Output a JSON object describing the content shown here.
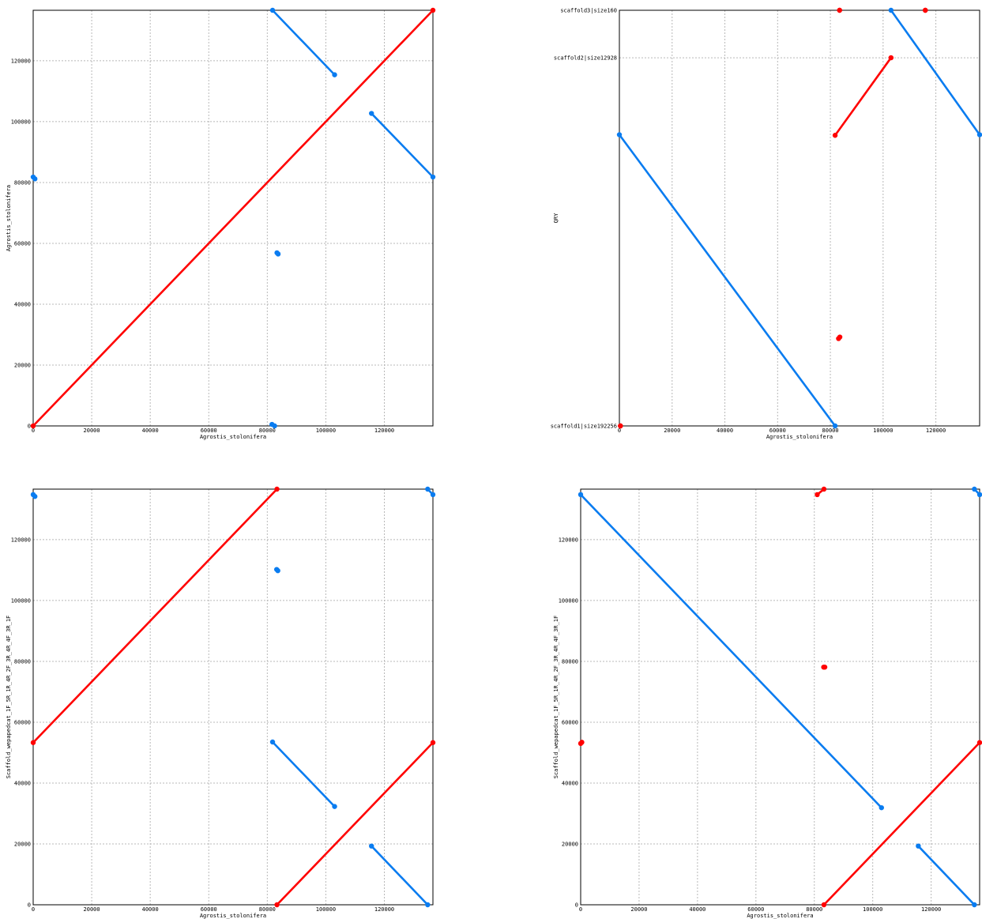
{
  "colors": {
    "forward": "#ff0000",
    "reverse": "#0a7cf0",
    "grid": "#b8b8b8",
    "axis": "#000000"
  },
  "chart_data": [
    {
      "type": "scatter",
      "title": "",
      "xlabel": "Agrostis_stolonifera",
      "ylabel": "Agrostis_stolonifera",
      "xlim": [
        0,
        136600
      ],
      "ylim": [
        0,
        136600
      ],
      "xticks": [
        0,
        20000,
        40000,
        60000,
        80000,
        100000,
        120000
      ],
      "yticks": [
        0,
        20000,
        40000,
        60000,
        80000,
        100000,
        120000
      ],
      "grid": true,
      "segments": [
        {
          "strand": "+",
          "x": [
            0,
            136600
          ],
          "y": [
            0,
            136600
          ]
        },
        {
          "strand": "-",
          "x": [
            81800,
            103000
          ],
          "y": [
            136600,
            115400
          ]
        },
        {
          "strand": "-",
          "x": [
            115600,
            136600
          ],
          "y": [
            102700,
            81800
          ]
        },
        {
          "strand": "-",
          "x": [
            0,
            600
          ],
          "y": [
            81800,
            81200
          ]
        },
        {
          "strand": "-",
          "x": [
            83300,
            83700
          ],
          "y": [
            56900,
            56500
          ]
        },
        {
          "strand": "-",
          "x": [
            81600,
            82500
          ],
          "y": [
            500,
            0
          ]
        }
      ]
    },
    {
      "type": "scatter",
      "title": "",
      "xlabel": "Agrostis_stolonifera",
      "ylabel": "QRY",
      "xlim": [
        0,
        136600
      ],
      "ylim": [
        0,
        136600
      ],
      "xticks": [
        0,
        20000,
        40000,
        60000,
        80000,
        100000,
        120000
      ],
      "yticks": [],
      "ytick_labels": [
        {
          "value": 0,
          "label": "scaffold1|size192256"
        },
        {
          "value": 121000,
          "label": "scaffold2|size12928"
        },
        {
          "value": 136600,
          "label": "scaffold3|size160"
        }
      ],
      "grid": true,
      "segments": [
        {
          "strand": "-",
          "x": [
            0,
            81800
          ],
          "y": [
            95700,
            0
          ]
        },
        {
          "strand": "+",
          "x": [
            81800,
            103000
          ],
          "y": [
            95500,
            121000
          ]
        },
        {
          "strand": "-",
          "x": [
            103000,
            136600
          ],
          "y": [
            136600,
            95700
          ]
        },
        {
          "strand": "+",
          "x": [
            83500,
            83500
          ],
          "y": [
            136600,
            136600
          ]
        },
        {
          "strand": "+",
          "x": [
            116000,
            116000
          ],
          "y": [
            136600,
            136600
          ]
        },
        {
          "strand": "+",
          "x": [
            83100,
            83600
          ],
          "y": [
            28700,
            29200
          ]
        },
        {
          "strand": "+",
          "x": [
            400,
            400
          ],
          "y": [
            0,
            0
          ]
        }
      ]
    },
    {
      "type": "scatter",
      "title": "",
      "xlabel": "Agrostis_stolonifera",
      "ylabel": "Scaffold_wepapedcat_1F_5R_1R_4R_2F_3R_4R_4F_3R_1F",
      "xlim": [
        0,
        136600
      ],
      "ylim": [
        0,
        136600
      ],
      "xticks": [
        0,
        20000,
        40000,
        60000,
        80000,
        100000,
        120000
      ],
      "yticks": [
        0,
        20000,
        40000,
        60000,
        80000,
        100000,
        120000
      ],
      "grid": true,
      "segments": [
        {
          "strand": "+",
          "x": [
            0,
            83300
          ],
          "y": [
            53300,
            136600
          ]
        },
        {
          "strand": "+",
          "x": [
            83300,
            136600
          ],
          "y": [
            0,
            53300
          ]
        },
        {
          "strand": "-",
          "x": [
            81800,
            103000
          ],
          "y": [
            53500,
            32300
          ]
        },
        {
          "strand": "-",
          "x": [
            115600,
            134800
          ],
          "y": [
            19300,
            0
          ]
        },
        {
          "strand": "-",
          "x": [
            0,
            600
          ],
          "y": [
            134800,
            134200
          ]
        },
        {
          "strand": "-",
          "x": [
            134800,
            136600
          ],
          "y": [
            136600,
            134800
          ]
        },
        {
          "strand": "-",
          "x": [
            83200,
            83600
          ],
          "y": [
            110200,
            109800
          ]
        }
      ]
    },
    {
      "type": "scatter",
      "title": "",
      "xlabel": "Agrostis_stolonifera",
      "ylabel": "Scaffold_wepapedcat_1F_5R_1R_4R_2F_3R_4R_4F_3R_1F",
      "xlim": [
        0,
        136600
      ],
      "ylim": [
        0,
        136600
      ],
      "xticks": [
        0,
        20000,
        40000,
        60000,
        80000,
        100000,
        120000
      ],
      "yticks": [
        0,
        20000,
        40000,
        60000,
        80000,
        100000,
        120000
      ],
      "grid": true,
      "segments": [
        {
          "strand": "-",
          "x": [
            0,
            103000
          ],
          "y": [
            134800,
            31900
          ]
        },
        {
          "strand": "+",
          "x": [
            83300,
            136600
          ],
          "y": [
            0,
            53300
          ]
        },
        {
          "strand": "-",
          "x": [
            115600,
            134800
          ],
          "y": [
            19300,
            0
          ]
        },
        {
          "strand": "-",
          "x": [
            134800,
            136600
          ],
          "y": [
            136600,
            134800
          ]
        },
        {
          "strand": "+",
          "x": [
            81000,
            83300
          ],
          "y": [
            134800,
            136600
          ]
        },
        {
          "strand": "+",
          "x": [
            0,
            400
          ],
          "y": [
            53000,
            53400
          ]
        },
        {
          "strand": "+",
          "x": [
            83200,
            83600
          ],
          "y": [
            78100,
            78100
          ]
        }
      ]
    }
  ]
}
